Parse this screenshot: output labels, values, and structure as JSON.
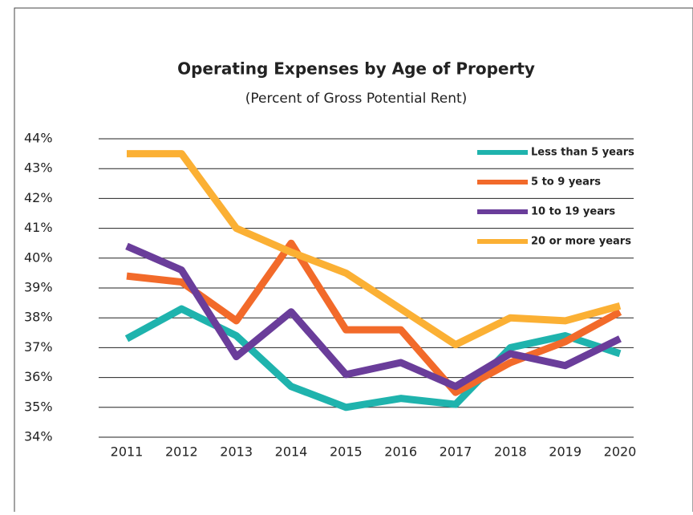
{
  "chart_data": {
    "type": "line",
    "title": "Operating Expenses by Age of Property",
    "subtitle": "(Percent of Gross Potential Rent)",
    "categories": [
      "2011",
      "2012",
      "2013",
      "2014",
      "2015",
      "2016",
      "2017",
      "2018",
      "2019",
      "2020"
    ],
    "series": [
      {
        "name": "Less than 5 years",
        "color": "#1fb3ad",
        "values": [
          37.3,
          38.3,
          37.4,
          35.7,
          35.0,
          35.3,
          35.1,
          37.0,
          37.4,
          36.8
        ]
      },
      {
        "name": "5 to 9 years",
        "color": "#f26a2a",
        "values": [
          39.4,
          39.2,
          37.9,
          40.5,
          37.6,
          37.6,
          35.5,
          36.5,
          37.2,
          38.2
        ]
      },
      {
        "name": "10 to 19 years",
        "color": "#6a3d9a",
        "values": [
          40.4,
          39.6,
          36.7,
          38.2,
          36.1,
          36.5,
          35.7,
          36.8,
          36.4,
          37.3
        ]
      },
      {
        "name": "20 or more years",
        "color": "#fbb034",
        "values": [
          43.5,
          43.5,
          41.0,
          40.2,
          39.5,
          38.3,
          37.1,
          38.0,
          37.9,
          38.4
        ]
      }
    ],
    "ylim": [
      34,
      44
    ],
    "yticks": [
      {
        "value": 34,
        "label": "34%"
      },
      {
        "value": 35,
        "label": "35%"
      },
      {
        "value": 36,
        "label": "36%"
      },
      {
        "value": 37,
        "label": "37%"
      },
      {
        "value": 38,
        "label": "38%"
      },
      {
        "value": 39,
        "label": "39%"
      },
      {
        "value": 40,
        "label": "40%"
      },
      {
        "value": 41,
        "label": "41%"
      },
      {
        "value": 42,
        "label": "42%"
      },
      {
        "value": 43,
        "label": "43%"
      },
      {
        "value": 44,
        "label": "44%"
      }
    ],
    "grid": true,
    "legend": "upper right"
  }
}
